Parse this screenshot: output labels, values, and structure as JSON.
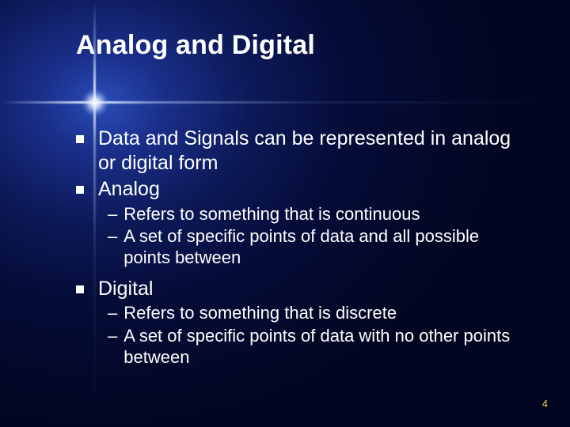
{
  "slide": {
    "title": "Analog and Digital",
    "page_number": "4",
    "colors": {
      "text": "#ffffff",
      "pagenum": "#f2c76b",
      "bg_center": "#2a4db8",
      "bg_outer": "#020620"
    },
    "fonts": {
      "title_size_pt": 34,
      "body_size_pt": 25,
      "sub_size_pt": 22,
      "pagenum_size_pt": 13
    },
    "b1_text": "Data and Signals can be represented in analog or digital form",
    "b2_text": "Analog",
    "b2_sub1": "Refers to something that is continuous",
    "b2_sub2": "A set of specific points of data and all possible points between",
    "b3_text": "Digital",
    "b3_sub1": "Refers to something that is discrete",
    "b3_sub2": "A set of specific points of data with no other points between",
    "dash": "–"
  }
}
